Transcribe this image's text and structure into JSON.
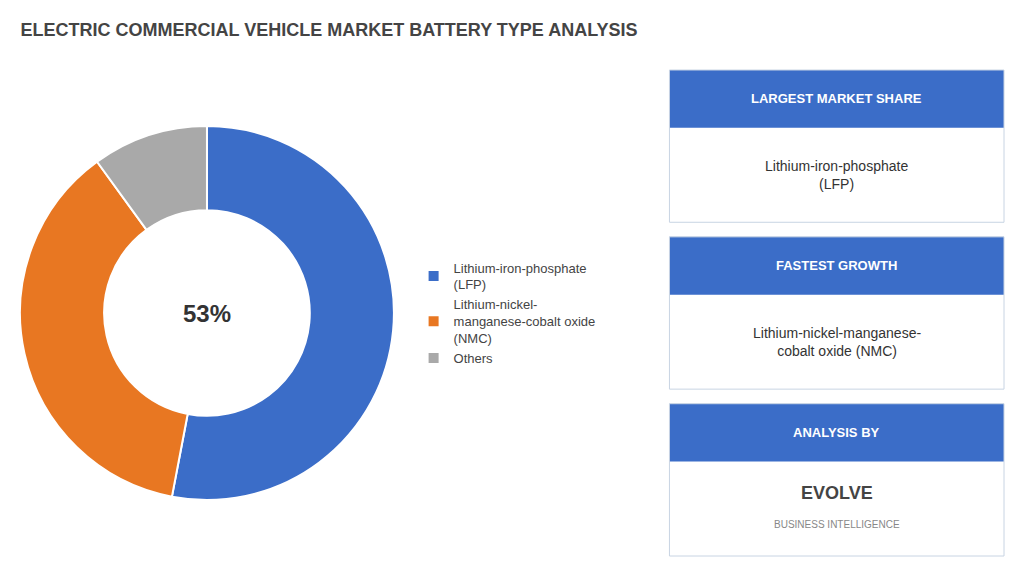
{
  "chart_data": {
    "type": "pie",
    "title": "ELECTRIC COMMERCIAL VEHICLE MARKET BATTERY TYPE ANALYSIS",
    "categories": [
      "Lithium-iron-phosphate\n(LFP)",
      "Lithium-nickel-\nmanganese-cobalt oxide\n(NMC)",
      "Others"
    ],
    "values": [
      53,
      37,
      10
    ],
    "colors": [
      "#3B6DC8",
      "#E87722",
      "#A9A9A9"
    ],
    "legend": "right",
    "annotations": [
      {
        "text": "53%"
      },
      {
        "title": "LARGEST MARKET SHARE",
        "text": "Lithium-iron-phosphate\n(LFP)"
      },
      {
        "title": "FASTEST GROWTH",
        "text": "Lithium-nickel-manganese-\ncobalt oxide (NMC)"
      },
      {
        "title": "ANALYSIS BY",
        "text": [
          "EVOLVE",
          "BUSINESS INTELLIGENCE"
        ]
      }
    ]
  }
}
